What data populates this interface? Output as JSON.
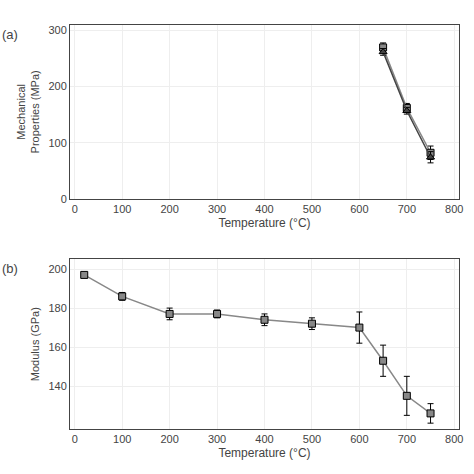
{
  "chart_data": [
    {
      "type": "line",
      "annotations": [
        "(a)"
      ],
      "xlabel": "Temperature (°C)",
      "ylabel": "Mechanical\nProperties (MPa)",
      "series": [
        {
          "x": [
            650,
            700,
            750
          ],
          "values": [
            270,
            162,
            82
          ],
          "yerr": [
            8,
            8,
            12
          ],
          "marker": "square",
          "color": "#888888",
          "line_style": "solid"
        },
        {
          "x": [
            650,
            700,
            750
          ],
          "values": [
            262,
            157,
            74
          ],
          "yerr": [
            6,
            6,
            10
          ],
          "marker": "triangle-up",
          "color": "#444444",
          "line_style": "solid"
        }
      ],
      "xlim": [
        -10,
        810
      ],
      "ylim": [
        0,
        310
      ],
      "xticks": [
        0,
        100,
        200,
        300,
        400,
        500,
        600,
        700,
        800
      ],
      "yticks": [
        0,
        100,
        200,
        300
      ],
      "grid": true
    },
    {
      "type": "line",
      "annotations": [
        "(b)"
      ],
      "xlabel": "Temperature (°C)",
      "ylabel": "Modulus (GPa)",
      "series": [
        {
          "x": [
            20,
            100,
            200,
            300,
            400,
            500,
            600,
            650,
            700,
            750
          ],
          "values": [
            197,
            186,
            177,
            177,
            174,
            172,
            170,
            153,
            135,
            126
          ],
          "yerr": [
            1,
            2,
            3,
            2,
            3,
            3,
            8,
            8,
            10,
            5
          ],
          "marker": "square",
          "color": "#888888",
          "line_style": "solid"
        }
      ],
      "xlim": [
        -10,
        810
      ],
      "ylim": [
        118,
        205
      ],
      "xticks": [
        0,
        100,
        200,
        300,
        400,
        500,
        600,
        700,
        800
      ],
      "yticks": [
        140,
        160,
        180,
        200
      ],
      "grid": true
    }
  ]
}
